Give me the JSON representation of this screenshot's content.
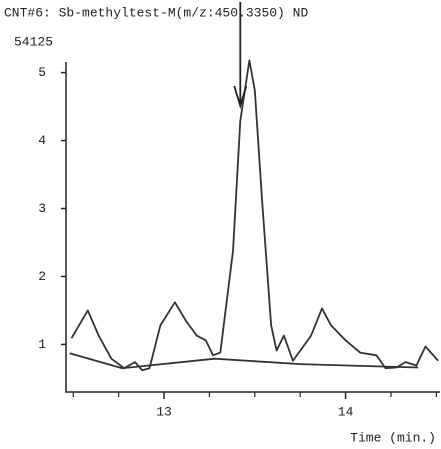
{
  "chart_data": {
    "type": "line",
    "title": "CNT#6: Sb-methyltest-M(m/z:450.3350) ND",
    "subtitle": "54125",
    "x_label": "Time (min.)",
    "xlim": [
      12.46,
      14.52
    ],
    "xticks": [
      13,
      14
    ],
    "xminor_ticks": [
      12.5,
      12.75,
      13.25,
      13.5,
      13.75,
      14.25,
      14.5
    ],
    "ylim": [
      0.3,
      5.2
    ],
    "yticks": [
      1,
      2,
      3,
      4,
      5
    ],
    "arrow_x": 13.42,
    "series": [
      {
        "name": "trace",
        "color": "#333333",
        "x": [
          12.49,
          12.58,
          12.64,
          12.71,
          12.78,
          12.84,
          12.88,
          12.92,
          12.98,
          13.06,
          13.12,
          13.18,
          13.23,
          13.27,
          13.31,
          13.38,
          13.42,
          13.47,
          13.5,
          13.54,
          13.59,
          13.62,
          13.66,
          13.71,
          13.81,
          13.87,
          13.92,
          14.0,
          14.08,
          14.17,
          14.22,
          14.28,
          14.33,
          14.39,
          14.44,
          14.51
        ],
        "values": [
          1.09,
          1.5,
          1.13,
          0.79,
          0.65,
          0.74,
          0.62,
          0.65,
          1.28,
          1.62,
          1.35,
          1.13,
          1.06,
          0.84,
          0.88,
          2.38,
          4.29,
          5.18,
          4.74,
          3.12,
          1.28,
          0.91,
          1.13,
          0.76,
          1.13,
          1.53,
          1.28,
          1.06,
          0.88,
          0.84,
          0.65,
          0.66,
          0.74,
          0.69,
          0.97,
          0.76
        ]
      },
      {
        "name": "baseline",
        "color": "#333333",
        "x": [
          12.48,
          12.77,
          13.28,
          13.75,
          14.4
        ],
        "values": [
          0.87,
          0.65,
          0.79,
          0.71,
          0.66
        ]
      }
    ]
  }
}
